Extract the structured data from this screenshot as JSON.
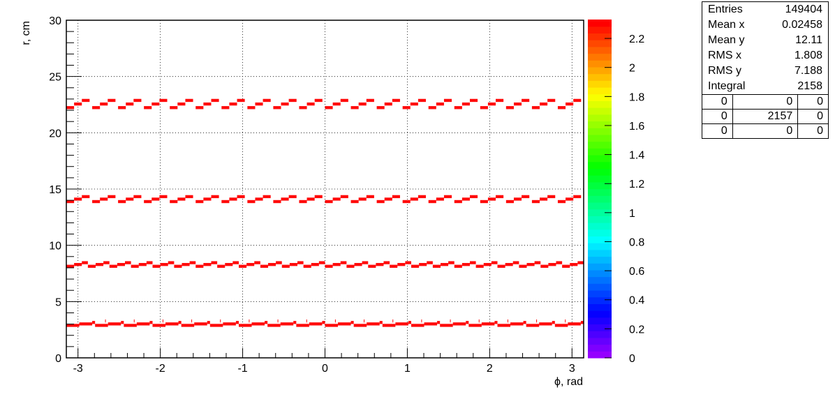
{
  "chart_data": {
    "type": "heatmap",
    "xlabel": "ϕ, rad",
    "ylabel": "r, cm",
    "xlim": [
      -3.1416,
      3.1416
    ],
    "ylim": [
      0,
      30
    ],
    "x_ticks": [
      "-3",
      "-2",
      "-1",
      "0",
      "1",
      "2",
      "3"
    ],
    "y_ticks": [
      "0",
      "5",
      "10",
      "15",
      "20",
      "25",
      "30"
    ],
    "grid": true,
    "z_range": [
      0,
      2.33
    ],
    "z_ticks": [
      "0",
      "0.2",
      "0.4",
      "0.6",
      "0.8",
      "1",
      "1.2",
      "1.4",
      "1.6",
      "1.8",
      "2",
      "2.2"
    ],
    "layers": [
      {
        "r_base": 2.75,
        "sector_count": 18,
        "steps_per_sector": 4,
        "step_dr": 0.13,
        "bins_per_step": 5
      },
      {
        "r_base": 8.0,
        "sector_count": 24,
        "steps_per_sector": 3,
        "step_dr": 0.16,
        "bins_per_step": 3
      },
      {
        "r_base": 13.75,
        "sector_count": 20,
        "steps_per_sector": 3,
        "step_dr": 0.22,
        "bins_per_step": 3
      },
      {
        "r_base": 22.1,
        "sector_count": 20,
        "steps_per_sector": 3,
        "step_dr": 0.32,
        "bins_per_step": 3
      }
    ],
    "cell_color": "#ff0a0a"
  },
  "stats": {
    "rows": [
      {
        "label": "Entries",
        "value": "149404"
      },
      {
        "label": "Mean x",
        "value": "0.02458"
      },
      {
        "label": "Mean y",
        "value": "12.11"
      },
      {
        "label": "RMS x",
        "value": "1.808"
      },
      {
        "label": "RMS y",
        "value": "7.188"
      },
      {
        "label": "Integral",
        "value": "2158"
      }
    ],
    "grid": [
      [
        "0",
        "0",
        "0"
      ],
      [
        "0",
        "2157",
        "0"
      ],
      [
        "0",
        "0",
        "0"
      ]
    ]
  }
}
